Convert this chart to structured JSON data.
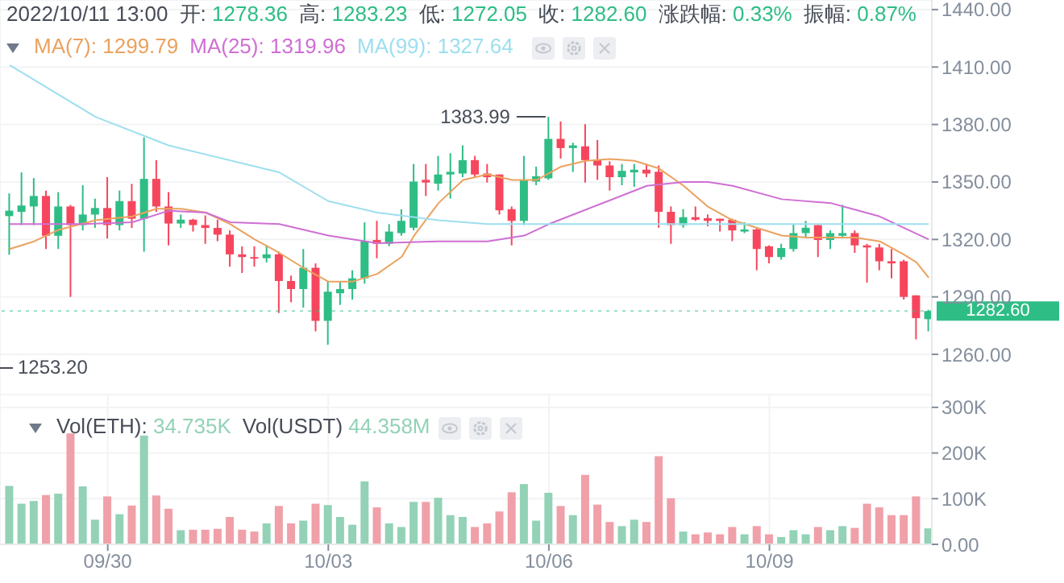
{
  "chart_data": [
    {
      "type": "candlestick",
      "title": "2022/10/11 13:00",
      "annotations": [
        "1253.20",
        "开:",
        "1278.36",
        "高:",
        "1283.23",
        "低:",
        "1272.05",
        "收:",
        "1282.60",
        "涨跌幅:",
        "0.33%",
        "振幅:",
        "0.87%",
        "1299.79",
        "1319.96",
        "1327.64",
        {
          "text": "1383.99",
          "x": "2022-10-06T00:00",
          "y": 1383.99
        }
      ],
      "x": [
        "2022-09-28T16:00",
        "2022-09-28T20:00",
        "2022-09-29T00:00",
        "2022-09-29T04:00",
        "2022-09-29T08:00",
        "2022-09-29T12:00",
        "2022-09-29T16:00",
        "2022-09-29T20:00",
        "2022-09-30T00:00",
        "2022-09-30T04:00",
        "2022-09-30T08:00",
        "2022-09-30T12:00",
        "2022-09-30T16:00",
        "2022-09-30T20:00",
        "2022-10-01T00:00",
        "2022-10-01T04:00",
        "2022-10-01T08:00",
        "2022-10-01T12:00",
        "2022-10-01T16:00",
        "2022-10-01T20:00",
        "2022-10-02T00:00",
        "2022-10-02T04:00",
        "2022-10-02T08:00",
        "2022-10-02T12:00",
        "2022-10-02T16:00",
        "2022-10-02T20:00",
        "2022-10-03T00:00",
        "2022-10-03T04:00",
        "2022-10-03T08:00",
        "2022-10-03T12:00",
        "2022-10-03T16:00",
        "2022-10-03T20:00",
        "2022-10-04T00:00",
        "2022-10-04T04:00",
        "2022-10-04T08:00",
        "2022-10-04T12:00",
        "2022-10-04T16:00",
        "2022-10-04T20:00",
        "2022-10-05T00:00",
        "2022-10-05T04:00",
        "2022-10-05T08:00",
        "2022-10-05T12:00",
        "2022-10-05T16:00",
        "2022-10-05T20:00",
        "2022-10-06T00:00",
        "2022-10-06T04:00",
        "2022-10-06T08:00",
        "2022-10-06T12:00",
        "2022-10-06T16:00",
        "2022-10-06T20:00",
        "2022-10-07T00:00",
        "2022-10-07T04:00",
        "2022-10-07T08:00",
        "2022-10-07T12:00",
        "2022-10-07T16:00",
        "2022-10-07T20:00",
        "2022-10-08T00:00",
        "2022-10-08T04:00",
        "2022-10-08T08:00",
        "2022-10-08T12:00",
        "2022-10-08T16:00",
        "2022-10-08T20:00",
        "2022-10-09T00:00",
        "2022-10-09T04:00",
        "2022-10-09T08:00",
        "2022-10-09T12:00",
        "2022-10-09T16:00",
        "2022-10-09T20:00",
        "2022-10-10T00:00",
        "2022-10-10T04:00",
        "2022-10-10T08:00",
        "2022-10-10T12:00",
        "2022-10-10T16:00",
        "2022-10-10T20:00",
        "2022-10-11T00:00",
        "2022-10-11T04:00"
      ],
      "ohlc": [
        [
          1332.2,
          1344,
          1312,
          1335
        ],
        [
          1334.4,
          1355,
          1327.5,
          1337.7
        ],
        [
          1337.2,
          1352,
          1327.5,
          1342.7
        ],
        [
          1342.7,
          1345.5,
          1315,
          1321.9
        ],
        [
          1321.9,
          1344.7,
          1315,
          1337.2
        ],
        [
          1337.2,
          1338,
          1290,
          1327.5
        ],
        [
          1327.5,
          1348.3,
          1324.7,
          1333
        ],
        [
          1333,
          1341.3,
          1326,
          1336.4
        ],
        [
          1336.4,
          1352.5,
          1320.5,
          1327.5
        ],
        [
          1327.5,
          1345.5,
          1324.7,
          1340
        ],
        [
          1340,
          1349,
          1326,
          1330.8
        ],
        [
          1330.8,
          1373.3,
          1313.6,
          1351.6
        ],
        [
          1351.6,
          1361.4,
          1334.4,
          1337.2
        ],
        [
          1337.2,
          1344.7,
          1316.9,
          1328.3
        ],
        [
          1328.3,
          1333,
          1326,
          1330.3
        ],
        [
          1330.3,
          1330.8,
          1324.1,
          1327.5
        ],
        [
          1327.5,
          1332.5,
          1317.7,
          1326
        ],
        [
          1326,
          1330.3,
          1319.1,
          1322.5
        ],
        [
          1322.5,
          1324.7,
          1305.8,
          1312.2
        ],
        [
          1312.2,
          1316.4,
          1302.5,
          1310.8
        ],
        [
          1310.8,
          1316.4,
          1305.8,
          1310.2
        ],
        [
          1310.2,
          1316.9,
          1308,
          1312.2
        ],
        [
          1312.2,
          1313.6,
          1281.6,
          1298.3
        ],
        [
          1298.3,
          1301.1,
          1287.2,
          1294.1
        ],
        [
          1294.1,
          1315,
          1284.4,
          1305.2
        ],
        [
          1305.2,
          1307.5,
          1272,
          1277.5
        ],
        [
          1277.5,
          1298.3,
          1265,
          1292.7
        ],
        [
          1291.9,
          1298.3,
          1285.8,
          1294.1
        ],
        [
          1294.1,
          1303.9,
          1288.6,
          1299.7
        ],
        [
          1299.7,
          1328.9,
          1296.9,
          1319.1
        ],
        [
          1319.7,
          1329.7,
          1310.2,
          1317.7
        ],
        [
          1317.7,
          1328,
          1316.4,
          1324.1
        ],
        [
          1323.3,
          1335.8,
          1321.9,
          1329.7
        ],
        [
          1326.1,
          1359.4,
          1324.7,
          1350.2
        ],
        [
          1351.1,
          1359.4,
          1342.7,
          1349.7
        ],
        [
          1349.1,
          1363.6,
          1345.5,
          1353.9
        ],
        [
          1353.9,
          1365,
          1341.3,
          1355.3
        ],
        [
          1354.4,
          1369.1,
          1352.5,
          1361.4
        ],
        [
          1361.4,
          1363.6,
          1352.5,
          1353.9
        ],
        [
          1354.4,
          1359.4,
          1349.7,
          1352.5
        ],
        [
          1353.9,
          1353.9,
          1333,
          1335.2
        ],
        [
          1335.8,
          1337.2,
          1316.9,
          1329.7
        ],
        [
          1329.7,
          1363.6,
          1327.5,
          1351.1
        ],
        [
          1350.2,
          1358,
          1348.3,
          1353
        ],
        [
          1351.9,
          1383.99,
          1351.1,
          1372.5
        ],
        [
          1372.5,
          1381.6,
          1362.2,
          1367.7
        ],
        [
          1367.7,
          1370.5,
          1355.2,
          1369.1
        ],
        [
          1368.6,
          1380.2,
          1349.7,
          1361.4
        ],
        [
          1361.4,
          1371.9,
          1351.1,
          1358.6
        ],
        [
          1358.6,
          1360.8,
          1345.5,
          1352.5
        ],
        [
          1352.5,
          1359.4,
          1348.3,
          1355.8
        ],
        [
          1355,
          1359.4,
          1347.5,
          1356.4
        ],
        [
          1356.4,
          1359.4,
          1352.5,
          1354.4
        ],
        [
          1355.3,
          1358.6,
          1326.1,
          1334.4
        ],
        [
          1334.4,
          1337.2,
          1317.7,
          1327.5
        ],
        [
          1327.5,
          1335.8,
          1326.1,
          1331.6
        ],
        [
          1331.6,
          1337.2,
          1329.7,
          1330.3
        ],
        [
          1331.1,
          1333,
          1326.9,
          1329.7
        ],
        [
          1330.8,
          1330.8,
          1324.1,
          1329.7
        ],
        [
          1330.3,
          1330.8,
          1319.1,
          1324.7
        ],
        [
          1324.1,
          1328.9,
          1323.3,
          1325.2
        ],
        [
          1325.2,
          1326.1,
          1303.9,
          1315
        ],
        [
          1316.4,
          1316.9,
          1307.5,
          1310.8
        ],
        [
          1310.8,
          1317.7,
          1309.4,
          1315.5
        ],
        [
          1315,
          1328,
          1313.6,
          1323.3
        ],
        [
          1323.3,
          1329.7,
          1321.4,
          1326.1
        ],
        [
          1327.5,
          1327.5,
          1310.8,
          1319.7
        ],
        [
          1319.7,
          1324.7,
          1315,
          1323.3
        ],
        [
          1321.9,
          1338,
          1320.5,
          1323.3
        ],
        [
          1323.3,
          1324.7,
          1313,
          1316.9
        ],
        [
          1316.9,
          1317.7,
          1297.5,
          1315.8
        ],
        [
          1315.8,
          1317.7,
          1303.9,
          1308.6
        ],
        [
          1308.6,
          1315,
          1299.7,
          1307.5
        ],
        [
          1308.6,
          1309.4,
          1288.6,
          1290
        ],
        [
          1290.8,
          1290.8,
          1267.8,
          1278.9
        ],
        [
          1278.36,
          1283.23,
          1272.05,
          1282.6
        ]
      ],
      "colors": [
        "#2ebd85",
        "#2ebd85",
        "#2ebd85",
        "#f6465d",
        "#2ebd85",
        "#f6465d",
        "#2ebd85",
        "#2ebd85",
        "#f6465d",
        "#2ebd85",
        "#f6465d",
        "#2ebd85",
        "#f6465d",
        "#f6465d",
        "#2ebd85",
        "#f6465d",
        "#f6465d",
        "#f6465d",
        "#f6465d",
        "#f6465d",
        "#f6465d",
        "#2ebd85",
        "#f6465d",
        "#f6465d",
        "#2ebd85",
        "#f6465d",
        "#2ebd85",
        "#2ebd85",
        "#2ebd85",
        "#2ebd85",
        "#f6465d",
        "#2ebd85",
        "#2ebd85",
        "#2ebd85",
        "#f6465d",
        "#2ebd85",
        "#2ebd85",
        "#2ebd85",
        "#f6465d",
        "#f6465d",
        "#f6465d",
        "#f6465d",
        "#2ebd85",
        "#2ebd85",
        "#2ebd85",
        "#f6465d",
        "#2ebd85",
        "#f6465d",
        "#f6465d",
        "#f6465d",
        "#2ebd85",
        "#2ebd85",
        "#f6465d",
        "#f6465d",
        "#f6465d",
        "#2ebd85",
        "#f6465d",
        "#f6465d",
        "#f6465d",
        "#f6465d",
        "#2ebd85",
        "#f6465d",
        "#f6465d",
        "#2ebd85",
        "#2ebd85",
        "#2ebd85",
        "#f6465d",
        "#2ebd85",
        "#2ebd85",
        "#f6465d",
        "#f6465d",
        "#f6465d",
        "#f6465d",
        "#f6465d",
        "#f6465d",
        "#2ebd85"
      ],
      "series": [
        {
          "type": "line",
          "name": "MA(7):",
          "color": "#eba25e",
          "x": [
            "2022-09-28T16:00",
            "2022-09-29T00:00",
            "2022-09-29T08:00",
            "2022-09-29T20:00",
            "2022-09-30T08:00",
            "2022-09-30T16:00",
            "2022-10-01T00:00",
            "2022-10-01T08:00",
            "2022-10-01T16:00",
            "2022-10-02T00:00",
            "2022-10-02T08:00",
            "2022-10-02T16:00",
            "2022-10-03T00:00",
            "2022-10-03T08:00",
            "2022-10-03T16:00",
            "2022-10-04T00:00",
            "2022-10-04T04:00",
            "2022-10-04T12:00",
            "2022-10-04T20:00",
            "2022-10-05T04:00",
            "2022-10-05T12:00",
            "2022-10-05T20:00",
            "2022-10-06T04:00",
            "2022-10-06T12:00",
            "2022-10-06T20:00",
            "2022-10-07T04:00",
            "2022-10-07T12:00",
            "2022-10-07T20:00",
            "2022-10-08T04:00",
            "2022-10-08T12:00",
            "2022-10-08T20:00",
            "2022-10-09T04:00",
            "2022-10-09T12:00",
            "2022-10-09T20:00",
            "2022-10-10T04:00",
            "2022-10-10T12:00",
            "2022-10-10T20:00",
            "2022-10-11T00:00",
            "2022-10-11T04:00"
          ],
          "values": [
            1315,
            1319,
            1325,
            1330,
            1332,
            1336,
            1336,
            1334,
            1328,
            1320,
            1313,
            1305,
            1298,
            1298,
            1302,
            1311,
            1322,
            1339,
            1351,
            1354,
            1351,
            1351,
            1358,
            1361,
            1362,
            1361,
            1357,
            1348,
            1337,
            1330,
            1326,
            1322,
            1321,
            1321,
            1321,
            1319,
            1312,
            1308,
            1300
          ]
        },
        {
          "type": "line",
          "name": "MA(25):",
          "color": "#cf6fd3",
          "x": [
            "2022-09-28T16:00",
            "2022-09-29T16:00",
            "2022-09-30T08:00",
            "2022-09-30T20:00",
            "2022-10-01T08:00",
            "2022-10-01T16:00",
            "2022-10-02T08:00",
            "2022-10-03T00:00",
            "2022-10-03T16:00",
            "2022-10-04T12:00",
            "2022-10-05T04:00",
            "2022-10-05T16:00",
            "2022-10-06T00:00",
            "2022-10-06T16:00",
            "2022-10-07T08:00",
            "2022-10-07T20:00",
            "2022-10-08T04:00",
            "2022-10-08T12:00",
            "2022-10-09T04:00",
            "2022-10-09T20:00",
            "2022-10-10T12:00",
            "2022-10-11T04:00"
          ],
          "values": [
            1328,
            1328,
            1329,
            1335,
            1334,
            1329,
            1328,
            1322,
            1318,
            1319,
            1319,
            1322,
            1328,
            1338,
            1348,
            1350,
            1350,
            1348,
            1341,
            1339,
            1332,
            1320
          ]
        },
        {
          "type": "line",
          "name": "MA(99):",
          "color": "#9ddfee",
          "x": [
            "2022-09-28T16:00",
            "2022-09-29T20:00",
            "2022-09-30T20:00",
            "2022-10-02T08:00",
            "2022-10-03T00:00",
            "2022-10-03T16:00",
            "2022-10-04T12:00",
            "2022-10-05T04:00",
            "2022-10-06T00:00",
            "2022-10-07T20:00",
            "2022-10-11T04:00"
          ],
          "values": [
            1411,
            1384,
            1369,
            1355,
            1340,
            1334,
            1330,
            1328,
            1328,
            1328,
            1328
          ]
        }
      ],
      "xlim": [
        "2022-09-28T12:50",
        "2022-10-11T05:00"
      ],
      "xticks": [
        {
          "value": "2022-09-30",
          "label": null
        },
        {
          "value": "2022-10-03",
          "label": null
        },
        {
          "value": "2022-10-06",
          "label": null
        },
        {
          "value": "2022-10-09",
          "label": null
        }
      ],
      "ylim": [
        1239,
        1445
      ],
      "yticks": [
        {
          "value": 1260,
          "label": "1260.00"
        },
        {
          "value": 1290,
          "label": "1290.00"
        },
        {
          "value": 1320,
          "label": "1320.00"
        },
        {
          "value": 1350,
          "label": "1350.00"
        },
        {
          "value": 1380,
          "label": "1380.00"
        },
        {
          "value": 1410,
          "label": "1410.00"
        },
        {
          "value": 1440,
          "label": "1440.00"
        }
      ],
      "tick_labels": "y",
      "grid": true,
      "legend": "top",
      "ref_lines": [
        {
          "axis": "y",
          "value": 1282.6,
          "label": "1282.60",
          "color": "#2ebd85"
        }
      ]
    },
    {
      "type": "bar",
      "annotations": [
        "Vol(ETH):",
        "34.735K",
        "Vol(USDT)",
        "44.358M"
      ],
      "x": [
        "2022-09-28T16:00",
        "2022-09-28T20:00",
        "2022-09-29T00:00",
        "2022-09-29T04:00",
        "2022-09-29T08:00",
        "2022-09-29T12:00",
        "2022-09-29T16:00",
        "2022-09-29T20:00",
        "2022-09-30T00:00",
        "2022-09-30T04:00",
        "2022-09-30T08:00",
        "2022-09-30T12:00",
        "2022-09-30T16:00",
        "2022-09-30T20:00",
        "2022-10-01T00:00",
        "2022-10-01T04:00",
        "2022-10-01T08:00",
        "2022-10-01T12:00",
        "2022-10-01T16:00",
        "2022-10-01T20:00",
        "2022-10-02T00:00",
        "2022-10-02T04:00",
        "2022-10-02T08:00",
        "2022-10-02T12:00",
        "2022-10-02T16:00",
        "2022-10-02T20:00",
        "2022-10-03T00:00",
        "2022-10-03T04:00",
        "2022-10-03T08:00",
        "2022-10-03T12:00",
        "2022-10-03T16:00",
        "2022-10-03T20:00",
        "2022-10-04T00:00",
        "2022-10-04T04:00",
        "2022-10-04T08:00",
        "2022-10-04T12:00",
        "2022-10-04T16:00",
        "2022-10-04T20:00",
        "2022-10-05T00:00",
        "2022-10-05T04:00",
        "2022-10-05T08:00",
        "2022-10-05T12:00",
        "2022-10-05T16:00",
        "2022-10-05T20:00",
        "2022-10-06T00:00",
        "2022-10-06T04:00",
        "2022-10-06T08:00",
        "2022-10-06T12:00",
        "2022-10-06T16:00",
        "2022-10-06T20:00",
        "2022-10-07T00:00",
        "2022-10-07T04:00",
        "2022-10-07T08:00",
        "2022-10-07T12:00",
        "2022-10-07T16:00",
        "2022-10-07T20:00",
        "2022-10-08T00:00",
        "2022-10-08T04:00",
        "2022-10-08T08:00",
        "2022-10-08T12:00",
        "2022-10-08T16:00",
        "2022-10-08T20:00",
        "2022-10-09T00:00",
        "2022-10-09T04:00",
        "2022-10-09T08:00",
        "2022-10-09T12:00",
        "2022-10-09T16:00",
        "2022-10-09T20:00",
        "2022-10-10T00:00",
        "2022-10-10T04:00",
        "2022-10-10T08:00",
        "2022-10-10T12:00",
        "2022-10-10T16:00",
        "2022-10-10T20:00",
        "2022-10-11T00:00",
        "2022-10-11T04:00"
      ],
      "values": [
        128000,
        89000,
        95000,
        108000,
        111000,
        243000,
        127000,
        54000,
        105000,
        66000,
        85000,
        238000,
        107000,
        78000,
        31000,
        32000,
        32000,
        34000,
        60000,
        32000,
        28000,
        46000,
        84000,
        46000,
        52000,
        89000,
        86000,
        60000,
        43000,
        138000,
        81000,
        46000,
        38000,
        93000,
        93000,
        102000,
        64000,
        60000,
        38000,
        46000,
        72000,
        114000,
        132000,
        52000,
        113000,
        84000,
        64000,
        152000,
        87000,
        49000,
        40000,
        54000,
        49000,
        193000,
        101000,
        28000,
        22000,
        26000,
        22000,
        38000,
        22000,
        40000,
        22000,
        16000,
        31000,
        22000,
        38000,
        31000,
        40000,
        36000,
        89000,
        81000,
        64000,
        64000,
        105000,
        35000
      ],
      "colors": [
        "#93d2b6",
        "#93d2b6",
        "#93d2b6",
        "#f0a0a8",
        "#93d2b6",
        "#f0a0a8",
        "#93d2b6",
        "#93d2b6",
        "#f0a0a8",
        "#93d2b6",
        "#f0a0a8",
        "#93d2b6",
        "#f0a0a8",
        "#f0a0a8",
        "#93d2b6",
        "#f0a0a8",
        "#f0a0a8",
        "#f0a0a8",
        "#f0a0a8",
        "#f0a0a8",
        "#f0a0a8",
        "#93d2b6",
        "#f0a0a8",
        "#f0a0a8",
        "#93d2b6",
        "#f0a0a8",
        "#93d2b6",
        "#93d2b6",
        "#93d2b6",
        "#93d2b6",
        "#f0a0a8",
        "#93d2b6",
        "#93d2b6",
        "#93d2b6",
        "#f0a0a8",
        "#93d2b6",
        "#93d2b6",
        "#93d2b6",
        "#f0a0a8",
        "#f0a0a8",
        "#f0a0a8",
        "#f0a0a8",
        "#93d2b6",
        "#93d2b6",
        "#93d2b6",
        "#f0a0a8",
        "#93d2b6",
        "#f0a0a8",
        "#f0a0a8",
        "#f0a0a8",
        "#93d2b6",
        "#93d2b6",
        "#f0a0a8",
        "#f0a0a8",
        "#f0a0a8",
        "#93d2b6",
        "#f0a0a8",
        "#f0a0a8",
        "#f0a0a8",
        "#f0a0a8",
        "#93d2b6",
        "#f0a0a8",
        "#f0a0a8",
        "#93d2b6",
        "#93d2b6",
        "#93d2b6",
        "#f0a0a8",
        "#93d2b6",
        "#93d2b6",
        "#f0a0a8",
        "#f0a0a8",
        "#f0a0a8",
        "#f0a0a8",
        "#f0a0a8",
        "#f0a0a8",
        "#93d2b6"
      ],
      "xlim": [
        "2022-09-28T12:50",
        "2022-10-11T05:00"
      ],
      "xticks": [
        {
          "value": "2022-09-30",
          "label": "09/30"
        },
        {
          "value": "2022-10-03",
          "label": "10/03"
        },
        {
          "value": "2022-10-06",
          "label": "10/06"
        },
        {
          "value": "2022-10-09",
          "label": "10/09"
        }
      ],
      "ylim": [
        0,
        328000
      ],
      "yticks": [
        {
          "value": 0,
          "label": "0.00"
        },
        {
          "value": 100000,
          "label": "100K"
        },
        {
          "value": 200000,
          "label": "200K"
        },
        {
          "value": 300000,
          "label": "300K"
        }
      ],
      "grid": true
    }
  ]
}
